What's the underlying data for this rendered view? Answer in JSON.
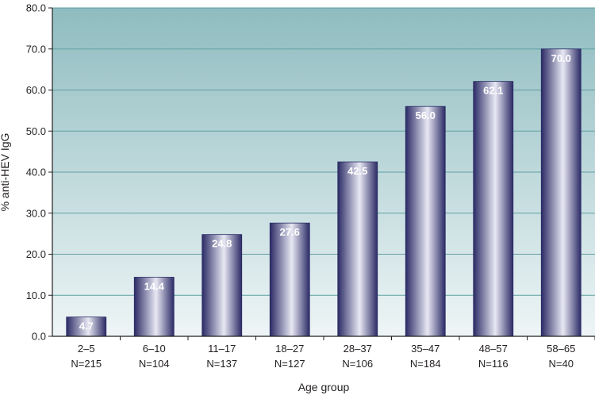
{
  "chart_data": {
    "type": "bar",
    "title": "",
    "xlabel": "Age group",
    "ylabel": "% anti-HEV IgG",
    "ylim": [
      0,
      80
    ],
    "yticks": [
      "0.0",
      "10.0",
      "20.0",
      "30.0",
      "40.0",
      "50.0",
      "60.0",
      "70.0",
      "80.0"
    ],
    "categories": [
      "2–5",
      "6–10",
      "11–17",
      "18–27",
      "28–37",
      "35–47",
      "48–57",
      "58–65"
    ],
    "sample_sizes": [
      "N=215",
      "N=104",
      "N=137",
      "N=127",
      "N=106",
      "N=184",
      "N=116",
      "N=40"
    ],
    "values": [
      4.7,
      14.4,
      24.8,
      27.6,
      42.5,
      56.0,
      62.1,
      70.0
    ],
    "data_labels": [
      "4.7",
      "14.4",
      "24.8",
      "27.6",
      "42.5",
      "56.0",
      "62.1",
      "70.0"
    ],
    "grid": true,
    "colors": {
      "bar_dark": "#2b2b66",
      "bar_light": "#e8e8f4",
      "plot_top": "#8fbcc0",
      "plot_bottom": "#eef5f6",
      "gridline": "#5f9ea3",
      "axis": "#231f20"
    }
  }
}
